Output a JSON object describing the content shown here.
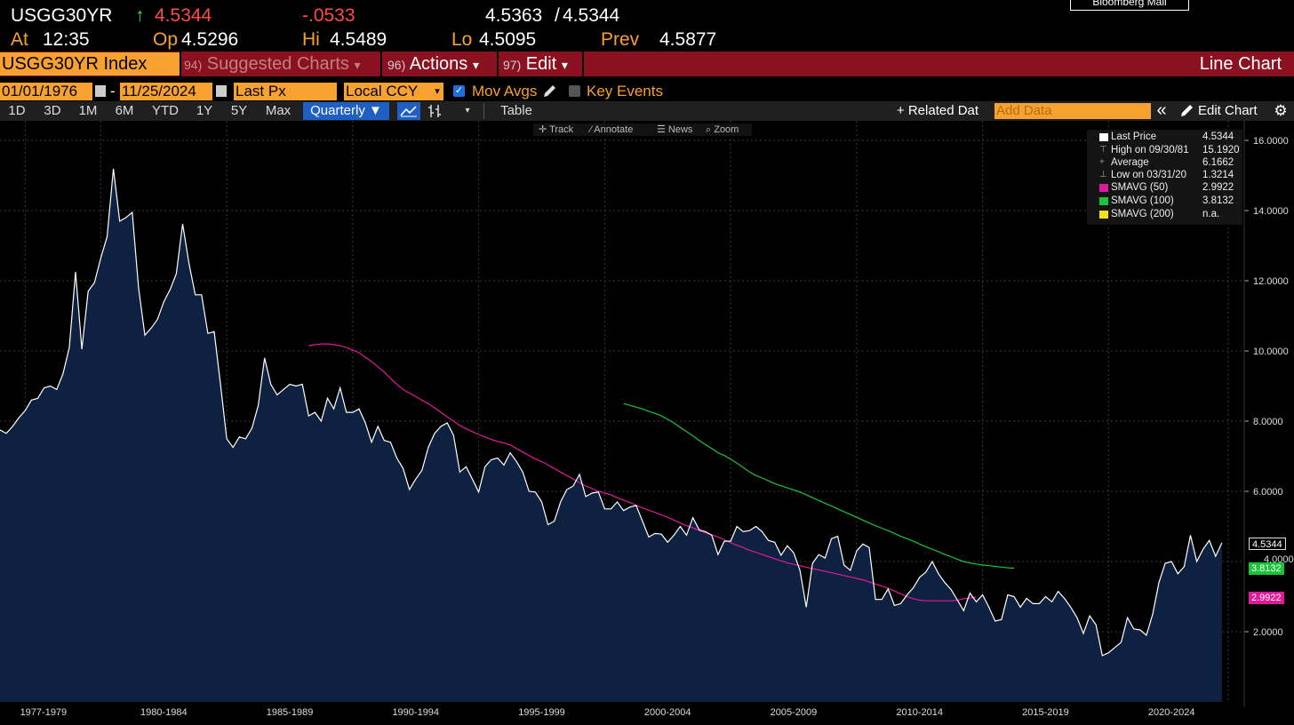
{
  "header": {
    "ticker": "USGG30YR",
    "arrow": "↑",
    "last": "4.5344",
    "change": "-.0533",
    "bid": "4.5363",
    "slash": "/",
    "ask": "4.5344",
    "at_label": "At",
    "time": "12:35",
    "open_label": "Op",
    "open": "4.5296",
    "high_label": "Hi",
    "high": "4.5489",
    "low_label": "Lo",
    "low": "4.5095",
    "prev_label": "Prev",
    "prev": "4.5877",
    "mall_button": "Bloomberg Mall"
  },
  "menubar": {
    "security": "USGG30YR Index",
    "suggested_num": "94)",
    "suggested": "Suggested Charts",
    "actions_num": "96)",
    "actions": "Actions",
    "edit_num": "97)",
    "edit": "Edit",
    "view_title": "Line Chart",
    "caret": "▾"
  },
  "settings": {
    "start_date": "01/01/1976",
    "dash": "-",
    "end_date": "11/25/2024",
    "field": "Last Px",
    "currency": "Local CCY",
    "mov_avgs": "Mov Avgs",
    "key_events": "Key Events"
  },
  "periods": [
    "1D",
    "3D",
    "1M",
    "6M",
    "YTD",
    "1Y",
    "5Y",
    "Max"
  ],
  "toolbar": {
    "frequency": "Quarterly ▼",
    "table": "Table",
    "related": "+ Related Dat",
    "add_data_placeholder": "Add Data",
    "collapse": "«",
    "edit_chart": "Edit Chart"
  },
  "chart_tools": [
    "Track",
    "Annotate",
    "News",
    "Zoom"
  ],
  "legend": [
    {
      "label": "Last Price",
      "value": "4.5344",
      "color": "#ffffff"
    },
    {
      "label": "High on 09/30/81",
      "value": "15.1920",
      "color": ""
    },
    {
      "label": "Average",
      "value": "6.1662",
      "color": ""
    },
    {
      "label": "Low on 03/31/20",
      "value": "1.3214",
      "color": ""
    },
    {
      "label": "SMAVG (50)",
      "value": "2.9922",
      "color": "#e0189a"
    },
    {
      "label": "SMAVG (100)",
      "value": "3.8132",
      "color": "#19c43a"
    },
    {
      "label": "SMAVG (200)",
      "value": "n.a.",
      "color": "#f3e21a"
    }
  ],
  "colors": {
    "accent": "#f7a131",
    "bar": "#8a1220",
    "up": "#2ee05a",
    "down": "#ff4a4a",
    "area_fill": "#0e2140",
    "sma50": "#e0189a",
    "sma100": "#19c43a"
  },
  "chart_data": {
    "type": "area",
    "frequency": "quarterly",
    "x_start": 1976.0,
    "x_step": 0.25,
    "ylim": [
      0,
      16
    ],
    "y_ticks": [
      "16.0000",
      "14.0000",
      "12.0000",
      "10.0000",
      "8.0000",
      "6.0000",
      "4.0000",
      "2.0000"
    ],
    "y_tick_values": [
      16,
      14,
      12,
      10,
      8,
      6,
      4,
      2
    ],
    "x_labels": [
      "1977-1979",
      "1980-1984",
      "1985-1989",
      "1990-1994",
      "1995-1999",
      "2000-2004",
      "2005-2009",
      "2010-2014",
      "2015-2019",
      "2020-2024"
    ],
    "x_label_years": [
      1978.5,
      1982.5,
      1987.5,
      1992.5,
      1997.5,
      2002.5,
      2007.5,
      2012.5,
      2017.5,
      2022.5
    ],
    "series": [
      {
        "name": "Last Price",
        "color": "#ffffff",
        "values": [
          7.75,
          7.65,
          7.85,
          8.1,
          8.3,
          8.6,
          8.65,
          8.95,
          9.0,
          8.9,
          9.35,
          10.1,
          12.25,
          10.05,
          11.7,
          11.95,
          12.65,
          13.25,
          15.19,
          13.7,
          13.8,
          13.95,
          11.8,
          10.45,
          10.65,
          10.9,
          11.4,
          11.75,
          12.2,
          13.62,
          12.5,
          11.6,
          11.6,
          10.5,
          10.55,
          9.05,
          7.5,
          7.25,
          7.55,
          7.5,
          7.8,
          8.45,
          9.8,
          9.05,
          8.75,
          8.9,
          9.05,
          9.0,
          9.05,
          8.15,
          8.25,
          8.0,
          8.65,
          8.35,
          8.95,
          8.25,
          8.25,
          8.35,
          7.95,
          7.4,
          7.85,
          7.45,
          7.4,
          6.95,
          6.65,
          6.05,
          6.35,
          6.6,
          7.25,
          7.65,
          7.85,
          7.95,
          7.6,
          6.55,
          6.7,
          6.35,
          5.98,
          6.7,
          6.9,
          6.95,
          6.75,
          7.1,
          6.85,
          6.55,
          6.0,
          5.98,
          5.7,
          5.05,
          5.15,
          5.7,
          6.05,
          6.15,
          6.48,
          5.85,
          5.95,
          5.98,
          5.5,
          5.5,
          5.7,
          5.45,
          5.55,
          5.6,
          5.15,
          4.7,
          4.8,
          4.78,
          4.55,
          4.75,
          5.0,
          4.75,
          5.25,
          4.9,
          4.85,
          4.75,
          4.2,
          4.58,
          4.58,
          5.0,
          4.85,
          4.88,
          5.0,
          4.85,
          4.6,
          4.55,
          4.18,
          4.45,
          4.25,
          3.75,
          2.7,
          3.95,
          4.2,
          4.1,
          4.65,
          4.72,
          3.9,
          3.75,
          4.3,
          4.5,
          4.4,
          2.92,
          2.92,
          3.22,
          2.75,
          2.8,
          3.05,
          3.25,
          3.55,
          3.7,
          4.0,
          3.65,
          3.4,
          3.2,
          2.9,
          2.6,
          3.1,
          2.85,
          3.05,
          2.7,
          2.3,
          2.35,
          3.05,
          3.0,
          2.7,
          2.95,
          2.8,
          2.8,
          3.0,
          2.85,
          3.15,
          2.95,
          2.7,
          2.4,
          1.95,
          2.45,
          2.2,
          1.32,
          1.4,
          1.55,
          1.7,
          2.4,
          2.08,
          2.05,
          1.9,
          2.5,
          3.4,
          3.95,
          4.0,
          3.65,
          3.85,
          4.75,
          4.0,
          4.35,
          4.6,
          4.15,
          4.5344
        ]
      },
      {
        "name": "SMAVG (50)",
        "color": "#e0189a",
        "x_start": 1988.25,
        "values": [
          10.15,
          10.18,
          10.2,
          10.2,
          10.18,
          10.15,
          10.1,
          10.02,
          9.95,
          9.82,
          9.7,
          9.55,
          9.4,
          9.22,
          9.05,
          8.9,
          8.8,
          8.7,
          8.6,
          8.5,
          8.38,
          8.25,
          8.12,
          8.0,
          7.88,
          7.78,
          7.7,
          7.62,
          7.55,
          7.48,
          7.42,
          7.38,
          7.32,
          7.22,
          7.12,
          7.02,
          6.92,
          6.85,
          6.75,
          6.65,
          6.55,
          6.45,
          6.35,
          6.25,
          6.15,
          6.08,
          6.0,
          5.95,
          5.9,
          5.82,
          5.75,
          5.68,
          5.6,
          5.53,
          5.46,
          5.4,
          5.33,
          5.26,
          5.18,
          5.1,
          5.02,
          4.96,
          4.88,
          4.82,
          4.76,
          4.7,
          4.62,
          4.54,
          4.46,
          4.4,
          4.32,
          4.26,
          4.2,
          4.14,
          4.08,
          4.02,
          3.96,
          3.92,
          3.88,
          3.84,
          3.8,
          3.76,
          3.72,
          3.68,
          3.64,
          3.6,
          3.56,
          3.52,
          3.48,
          3.42,
          3.36,
          3.3,
          3.24,
          3.16,
          3.08,
          3.0,
          2.94,
          2.9,
          2.88,
          2.88,
          2.88,
          2.88,
          2.88,
          2.9,
          2.94,
          2.96,
          2.99
        ]
      },
      {
        "name": "SMAVG (100)",
        "color": "#19c43a",
        "x_start": 2000.75,
        "values": [
          8.5,
          8.45,
          8.4,
          8.35,
          8.28,
          8.22,
          8.15,
          8.05,
          7.95,
          7.82,
          7.7,
          7.58,
          7.45,
          7.33,
          7.22,
          7.1,
          7.02,
          6.92,
          6.8,
          6.68,
          6.55,
          6.45,
          6.38,
          6.3,
          6.22,
          6.16,
          6.1,
          6.04,
          5.98,
          5.9,
          5.82,
          5.74,
          5.66,
          5.58,
          5.5,
          5.42,
          5.34,
          5.26,
          5.18,
          5.1,
          5.02,
          4.95,
          4.88,
          4.8,
          4.72,
          4.65,
          4.58,
          4.5,
          4.42,
          4.35,
          4.28,
          4.2,
          4.14,
          4.06,
          4.0,
          3.96,
          3.93,
          3.9,
          3.88,
          3.86,
          3.84,
          3.82,
          3.81
        ]
      }
    ]
  },
  "tags": {
    "last": "4.5344",
    "sma100": "3.8132",
    "sma50": "2.9922",
    "hidden_tick": "4.0000"
  }
}
